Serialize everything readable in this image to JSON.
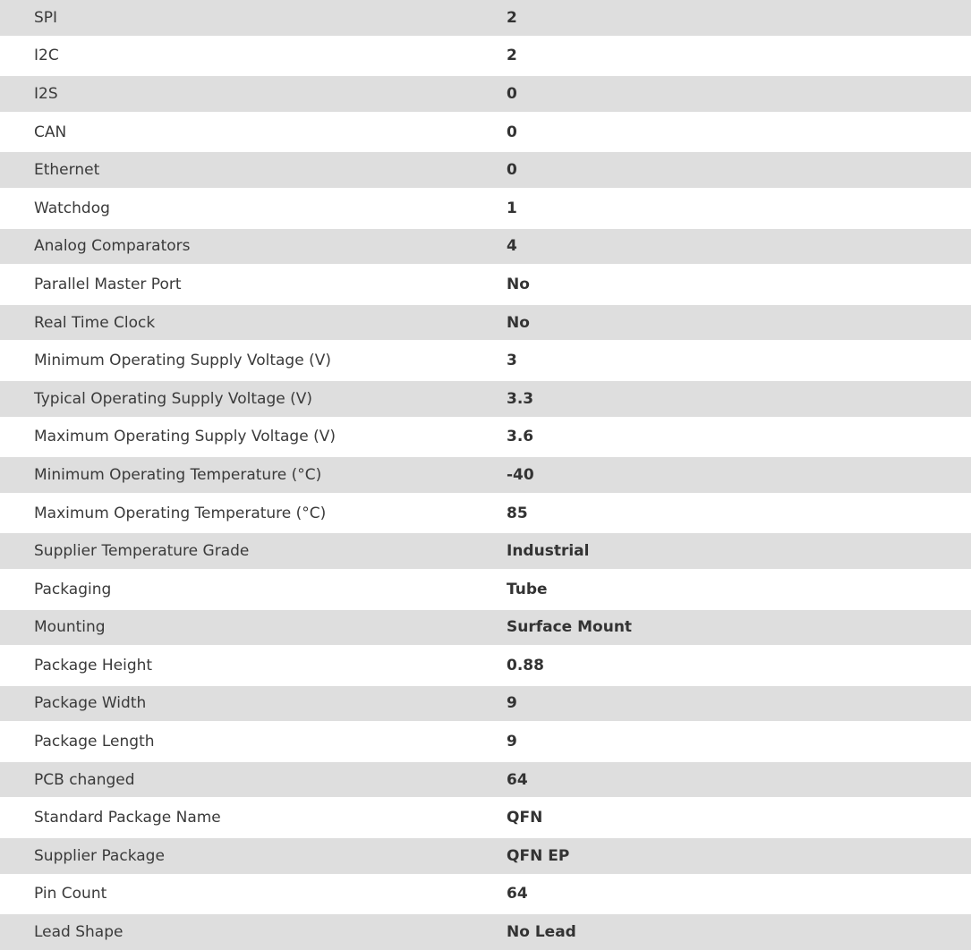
{
  "specs": [
    {
      "label": "SPI",
      "value": "2"
    },
    {
      "label": "I2C",
      "value": "2"
    },
    {
      "label": "I2S",
      "value": "0"
    },
    {
      "label": "CAN",
      "value": "0"
    },
    {
      "label": "Ethernet",
      "value": "0"
    },
    {
      "label": "Watchdog",
      "value": "1"
    },
    {
      "label": "Analog Comparators",
      "value": "4"
    },
    {
      "label": "Parallel Master Port",
      "value": "No"
    },
    {
      "label": "Real Time Clock",
      "value": "No"
    },
    {
      "label": "Minimum Operating Supply Voltage (V)",
      "value": "3"
    },
    {
      "label": "Typical Operating Supply Voltage (V)",
      "value": "3.3"
    },
    {
      "label": "Maximum Operating Supply Voltage (V)",
      "value": "3.6"
    },
    {
      "label": "Minimum Operating Temperature (°C)",
      "value": "-40"
    },
    {
      "label": "Maximum Operating Temperature (°C)",
      "value": "85"
    },
    {
      "label": "Supplier Temperature Grade",
      "value": "Industrial"
    },
    {
      "label": "Packaging",
      "value": "Tube"
    },
    {
      "label": "Mounting",
      "value": "Surface Mount"
    },
    {
      "label": "Package Height",
      "value": "0.88"
    },
    {
      "label": "Package Width",
      "value": "9"
    },
    {
      "label": "Package Length",
      "value": "9"
    },
    {
      "label": "PCB changed",
      "value": "64"
    },
    {
      "label": "Standard Package Name",
      "value": "QFN"
    },
    {
      "label": "Supplier Package",
      "value": "QFN EP"
    },
    {
      "label": "Pin Count",
      "value": "64"
    },
    {
      "label": "Lead Shape",
      "value": "No Lead"
    }
  ]
}
